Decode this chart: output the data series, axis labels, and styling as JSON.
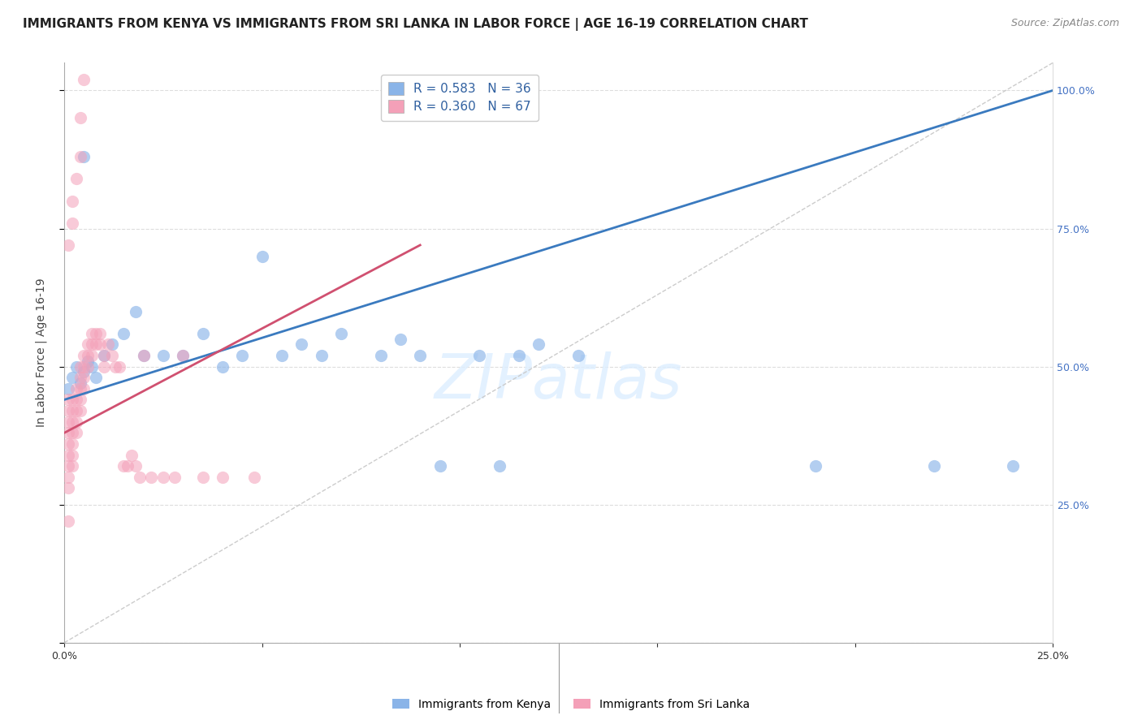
{
  "title": "IMMIGRANTS FROM KENYA VS IMMIGRANTS FROM SRI LANKA IN LABOR FORCE | AGE 16-19 CORRELATION CHART",
  "source": "Source: ZipAtlas.com",
  "ylabel": "In Labor Force | Age 16-19",
  "xlim": [
    0.0,
    0.25
  ],
  "ylim": [
    0.0,
    1.05
  ],
  "kenya_R": 0.583,
  "kenya_N": 36,
  "srilanka_R": 0.36,
  "srilanka_N": 67,
  "kenya_color": "#8ab4e8",
  "srilanka_color": "#f4a0b8",
  "kenya_line_color": "#3a7abf",
  "srilanka_line_color": "#d05070",
  "diagonal_color": "#cccccc",
  "background_color": "#ffffff",
  "grid_color": "#dddddd",
  "kenya_line_x0": 0.0,
  "kenya_line_y0": 0.44,
  "kenya_line_x1": 0.25,
  "kenya_line_y1": 1.0,
  "srilanka_line_x0": 0.0,
  "srilanka_line_y0": 0.38,
  "srilanka_line_x1": 0.09,
  "srilanka_line_y1": 0.72,
  "kenya_scatter_x": [
    0.001,
    0.002,
    0.003,
    0.004,
    0.005,
    0.006,
    0.007,
    0.008,
    0.01,
    0.012,
    0.015,
    0.018,
    0.02,
    0.025,
    0.03,
    0.035,
    0.04,
    0.045,
    0.05,
    0.055,
    0.06,
    0.065,
    0.07,
    0.08,
    0.085,
    0.09,
    0.095,
    0.105,
    0.11,
    0.115,
    0.12,
    0.13,
    0.19,
    0.22,
    0.24,
    0.005
  ],
  "kenya_scatter_y": [
    0.46,
    0.48,
    0.5,
    0.47,
    0.49,
    0.51,
    0.5,
    0.48,
    0.52,
    0.54,
    0.56,
    0.6,
    0.52,
    0.52,
    0.52,
    0.56,
    0.5,
    0.52,
    0.7,
    0.52,
    0.54,
    0.52,
    0.56,
    0.52,
    0.55,
    0.52,
    0.32,
    0.52,
    0.32,
    0.52,
    0.54,
    0.52,
    0.32,
    0.32,
    0.32,
    0.88
  ],
  "srilanka_scatter_x": [
    0.001,
    0.001,
    0.001,
    0.001,
    0.001,
    0.001,
    0.001,
    0.001,
    0.001,
    0.001,
    0.002,
    0.002,
    0.002,
    0.002,
    0.002,
    0.002,
    0.002,
    0.003,
    0.003,
    0.003,
    0.003,
    0.003,
    0.004,
    0.004,
    0.004,
    0.004,
    0.004,
    0.005,
    0.005,
    0.005,
    0.005,
    0.006,
    0.006,
    0.006,
    0.007,
    0.007,
    0.007,
    0.008,
    0.008,
    0.009,
    0.009,
    0.01,
    0.01,
    0.011,
    0.012,
    0.013,
    0.014,
    0.015,
    0.016,
    0.017,
    0.018,
    0.019,
    0.02,
    0.022,
    0.025,
    0.028,
    0.03,
    0.035,
    0.04,
    0.048,
    0.001,
    0.002,
    0.002,
    0.003,
    0.004,
    0.004,
    0.005
  ],
  "srilanka_scatter_y": [
    0.44,
    0.42,
    0.4,
    0.38,
    0.36,
    0.34,
    0.32,
    0.3,
    0.28,
    0.22,
    0.44,
    0.42,
    0.4,
    0.38,
    0.36,
    0.34,
    0.32,
    0.46,
    0.44,
    0.42,
    0.4,
    0.38,
    0.5,
    0.48,
    0.46,
    0.44,
    0.42,
    0.52,
    0.5,
    0.48,
    0.46,
    0.54,
    0.52,
    0.5,
    0.56,
    0.54,
    0.52,
    0.56,
    0.54,
    0.56,
    0.54,
    0.52,
    0.5,
    0.54,
    0.52,
    0.5,
    0.5,
    0.32,
    0.32,
    0.34,
    0.32,
    0.3,
    0.52,
    0.3,
    0.3,
    0.3,
    0.52,
    0.3,
    0.3,
    0.3,
    0.72,
    0.76,
    0.8,
    0.84,
    0.88,
    0.95,
    1.02
  ],
  "title_fontsize": 11,
  "source_fontsize": 9,
  "axis_label_fontsize": 10,
  "tick_fontsize": 9,
  "legend_fontsize": 11
}
